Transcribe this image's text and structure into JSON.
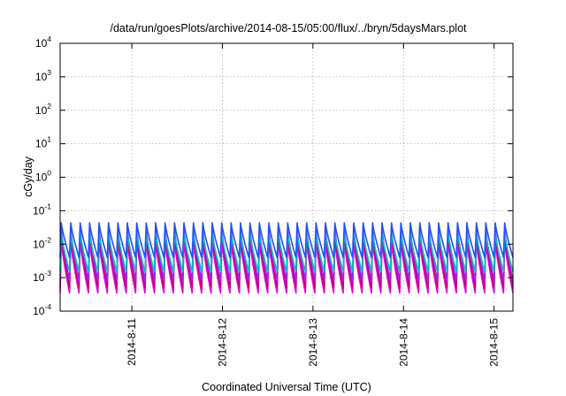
{
  "chart_data": {
    "type": "line",
    "title": "/data/run/goesPlots/archive/2014-08-15/05:00/flux/../bryn/5daysMars.plot",
    "xlabel": "Coordinated Universal Time (UTC)",
    "ylabel": "cGy/day",
    "yscale": "log",
    "ylim": [
      0.0001,
      10000
    ],
    "y_ticks": [
      {
        "base": "10",
        "exp": "-4",
        "value": 0.0001
      },
      {
        "base": "10",
        "exp": "-3",
        "value": 0.001
      },
      {
        "base": "10",
        "exp": "-2",
        "value": 0.01
      },
      {
        "base": "10",
        "exp": "-1",
        "value": 0.1
      },
      {
        "base": "10",
        "exp": "0",
        "value": 1
      },
      {
        "base": "10",
        "exp": "1",
        "value": 10
      },
      {
        "base": "10",
        "exp": "2",
        "value": 100
      },
      {
        "base": "10",
        "exp": "3",
        "value": 1000
      },
      {
        "base": "10",
        "exp": "4",
        "value": 10000
      }
    ],
    "xlim": [
      "2014-08-10 05:00",
      "2014-08-15 05:00"
    ],
    "x_ticks": [
      {
        "label": "2014-8-11",
        "date": "2014-08-11 00:00"
      },
      {
        "label": "2014-8-12",
        "date": "2014-08-12 00:00"
      },
      {
        "label": "2014-8-13",
        "date": "2014-08-13 00:00"
      },
      {
        "label": "2014-8-14",
        "date": "2014-08-14 00:00"
      },
      {
        "label": "2014-8-15",
        "date": "2014-08-15 00:00"
      }
    ],
    "grid": true,
    "legend": "none",
    "series_period_hours": 2.5,
    "series": [
      {
        "color": "#e000e0",
        "peak": 0.013,
        "trough": 0.00035
      },
      {
        "color": "#cc0066",
        "peak": 0.022,
        "trough": 0.0005
      },
      {
        "color": "#a020f0",
        "peak": 0.03,
        "trough": 0.0008
      },
      {
        "color": "#00c0c0",
        "peak": 0.022,
        "trough": 0.0015
      },
      {
        "color": "#2050ff",
        "peak": 0.045,
        "trough": 0.004
      }
    ]
  }
}
